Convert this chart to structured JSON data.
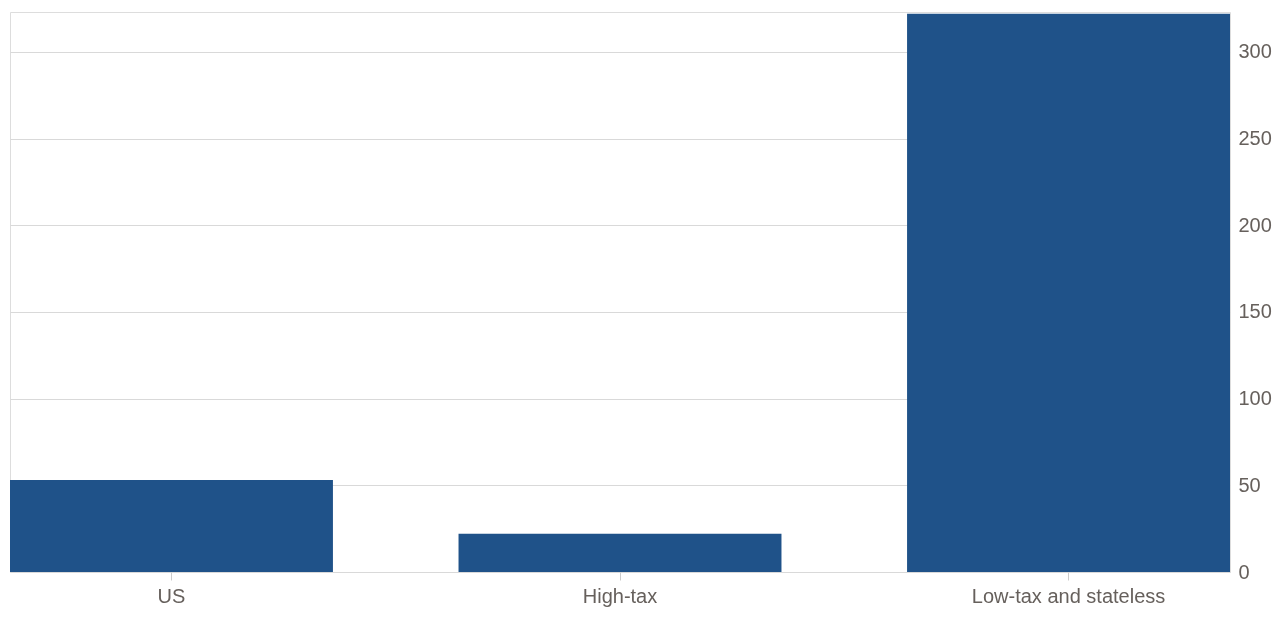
{
  "chart_data": {
    "type": "bar",
    "categories": [
      "US",
      "High-tax",
      "Low-tax and stateless"
    ],
    "values": [
      53,
      22,
      322
    ],
    "color": "#1f5289",
    "ylim": [
      0,
      323
    ],
    "yticks": [
      0,
      50,
      100,
      150,
      200,
      250,
      300
    ],
    "grid": "y"
  }
}
